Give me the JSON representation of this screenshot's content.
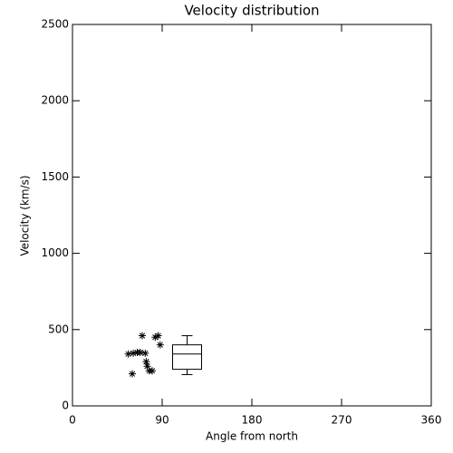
{
  "chart_data": {
    "type": "scatter",
    "title": "Velocity distribution",
    "x_label": "Angle from north",
    "y_label": "Velocity (km/s)",
    "x": [
      56,
      61,
      65,
      68,
      60,
      70,
      73,
      74,
      77,
      80,
      83,
      86,
      88,
      75
    ],
    "values": [
      340,
      345,
      350,
      350,
      210,
      460,
      345,
      290,
      230,
      230,
      450,
      460,
      400,
      260
    ],
    "color": "#000000",
    "marker": "asterisk",
    "box": {
      "x": 115,
      "min": 205,
      "q1": 240,
      "median": 340,
      "q3": 400,
      "max": 460
    },
    "xlim": [
      0,
      360
    ],
    "xticks": [
      0,
      90,
      180,
      270,
      360
    ],
    "ylim": [
      0,
      2500
    ],
    "yticks": [
      0,
      500,
      1000,
      1500,
      2000,
      2500
    ]
  }
}
